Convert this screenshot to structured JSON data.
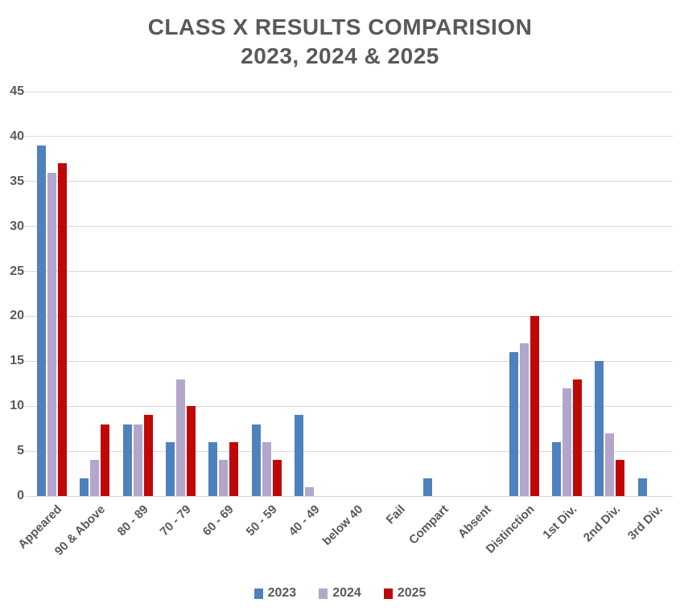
{
  "title": {
    "line1": "CLASS X RESULTS COMPARISION",
    "line2": "2023, 2024 & 2025"
  },
  "colors": {
    "text": "#595959",
    "gridline": "#d9d9d9",
    "background": "#ffffff",
    "series_2023": "#4f81bd",
    "series_2024": "#b3a6cb",
    "series_2025": "#c00707"
  },
  "chart_data": {
    "type": "bar",
    "title": "CLASS X RESULTS COMPARISION 2023, 2024 & 2025",
    "categories": [
      "Appeared",
      "90 & Above",
      "80 - 89",
      "70 - 79",
      "60 - 69",
      "50 - 59",
      "40 - 49",
      "below 40",
      "Fail",
      "Compart",
      "Absent",
      "Distinction",
      "1st Div.",
      "2nd Div.",
      "3rd Div."
    ],
    "series": [
      {
        "name": "2023",
        "color": "#4f81bd",
        "values": [
          39,
          2,
          8,
          6,
          6,
          8,
          9,
          0,
          0,
          2,
          0,
          16,
          6,
          15,
          2
        ]
      },
      {
        "name": "2024",
        "color": "#b3a6cb",
        "values": [
          36,
          4,
          8,
          13,
          4,
          6,
          1,
          0,
          0,
          0,
          0,
          17,
          12,
          7,
          0
        ]
      },
      {
        "name": "2025",
        "color": "#c00707",
        "values": [
          37,
          8,
          9,
          10,
          6,
          4,
          0,
          0,
          0,
          0,
          0,
          20,
          13,
          4,
          0
        ]
      }
    ],
    "xlabel": "",
    "ylabel": "",
    "ylim": [
      0,
      45
    ],
    "yticks": [
      0,
      5,
      10,
      15,
      20,
      25,
      30,
      35,
      40,
      45
    ],
    "grid": true,
    "legend_position": "bottom"
  }
}
